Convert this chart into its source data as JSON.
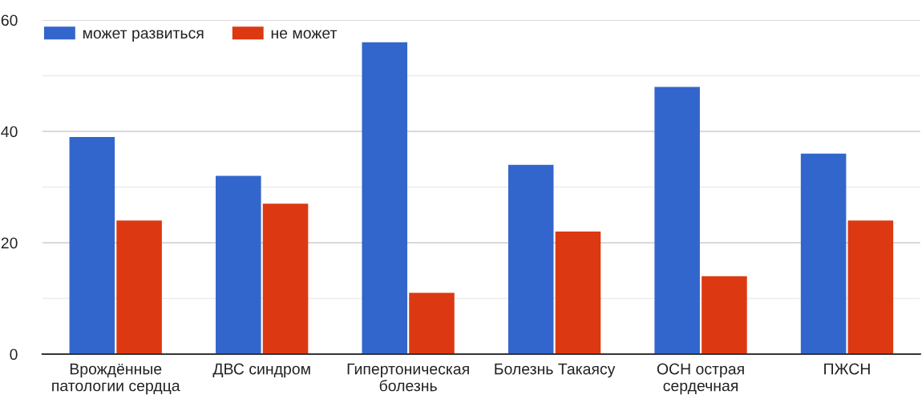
{
  "chart_data": {
    "type": "bar",
    "categories": [
      "Врождённые патологии сердца",
      "ДВС синдром",
      "Гипертоническая болезнь",
      "Болезнь Такаясу",
      "ОСН острая сердечная",
      "ПЖСН"
    ],
    "series": [
      {
        "name": "может развиться",
        "color": "#3366cc",
        "values": [
          39,
          32,
          56,
          34,
          48,
          36
        ]
      },
      {
        "name": "не может",
        "color": "#dc3912",
        "values": [
          24,
          27,
          11,
          22,
          14,
          24
        ]
      }
    ],
    "ylim": [
      0,
      60
    ],
    "yticks": [
      0,
      {
        "value": 10,
        "label": null
      },
      20,
      {
        "value": 30,
        "label": null
      },
      40,
      {
        "value": 50,
        "label": null
      },
      60
    ],
    "grid": "y",
    "legend": "top left"
  }
}
